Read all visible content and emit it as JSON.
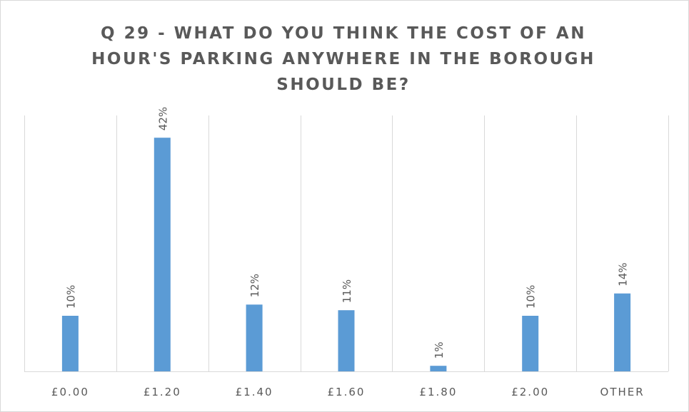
{
  "chart_data": {
    "type": "bar",
    "title": "Q 29 - WHAT DO YOU THINK THE COST OF AN HOUR'S PARKING ANYWHERE IN THE BOROUGH SHOULD BE?",
    "categories": [
      "£0.00",
      "£1.20",
      "£1.40",
      "£1.60",
      "£1.80",
      "£2.00",
      "OTHER"
    ],
    "values": [
      10,
      42,
      12,
      11,
      1,
      10,
      14
    ],
    "data_labels": [
      "10%",
      "42%",
      "12%",
      "11%",
      "1%",
      "10%",
      "14%"
    ],
    "value_unit": "%",
    "xlabel": "",
    "ylabel": "",
    "ylim": [
      0,
      46
    ],
    "y_axis_visible": false,
    "grid": "vertical category separators",
    "legend": "none",
    "data_label_orientation": "rotated vertical",
    "colors": {
      "bar": "#5b9bd5",
      "gridline": "#d9d9d9",
      "text": "#595959",
      "frame": "#d9d9d9"
    }
  }
}
